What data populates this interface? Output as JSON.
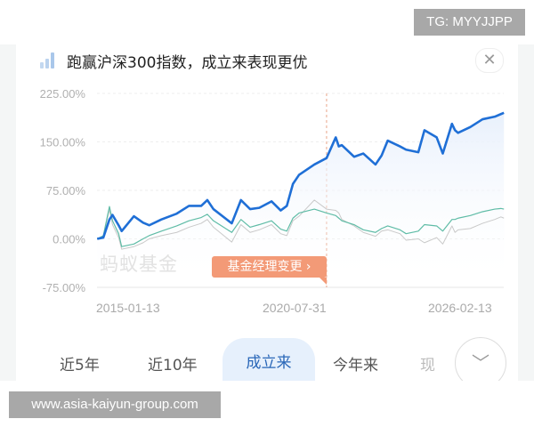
{
  "watermark_top": "TG: MYYJJPP",
  "header": {
    "title": "跑赢沪深300指数，成立来表现更优",
    "icon": "bar-chart-icon",
    "close_icon": "close-icon",
    "close_glyph": "✕"
  },
  "chart_data": {
    "type": "line",
    "ylim": [
      -75,
      225
    ],
    "y_ticks": [
      "225.00%",
      "150.00%",
      "75.00%",
      "0.00%",
      "-75.00%"
    ],
    "y_tick_values": [
      225,
      150,
      75,
      0,
      -75
    ],
    "x_ticks": [
      "2015-01-13",
      "2020-07-31",
      "2026-02-13"
    ],
    "x_range": [
      "2015-01-13",
      "2026-02-13"
    ],
    "grid": true,
    "colors": {
      "fund": "#1f6fd6",
      "benchmark": "#5fbca6",
      "index": "#c9c9c9",
      "area": "#e8f0fc"
    },
    "event": {
      "date": "2021-04",
      "label": "基金经理变更 ›"
    },
    "x": [
      "2015-01",
      "2015-03",
      "2015-05",
      "2015-06",
      "2015-08",
      "2015-09",
      "2016-01",
      "2016-04",
      "2016-06",
      "2016-10",
      "2017-03",
      "2017-07",
      "2017-11",
      "2018-01",
      "2018-03",
      "2018-09",
      "2018-12",
      "2019-03",
      "2019-06",
      "2019-10",
      "2020-01",
      "2020-03",
      "2020-05",
      "2020-07",
      "2020-12",
      "2021-04",
      "2021-07",
      "2021-08",
      "2021-09",
      "2022-01",
      "2022-04",
      "2022-08",
      "2022-10",
      "2022-12",
      "2023-04",
      "2023-06",
      "2023-10",
      "2023-12",
      "2024-04",
      "2024-06",
      "2024-09",
      "2024-10",
      "2024-11",
      "2025-03",
      "2025-07",
      "2025-11",
      "2026-01",
      "2026-02"
    ],
    "series": [
      {
        "key": "fund",
        "values": [
          0,
          2,
          30,
          37,
          21,
          12,
          35,
          25,
          21,
          30,
          39,
          51,
          51,
          60,
          46,
          24,
          60,
          46,
          48,
          58,
          44,
          51,
          85,
          99,
          115,
          125,
          157,
          143,
          145,
          127,
          132,
          115,
          129,
          152,
          143,
          138,
          134,
          168,
          157,
          132,
          178,
          168,
          164,
          173,
          185,
          189,
          193,
          195
        ]
      },
      {
        "key": "benchmark",
        "values": [
          0,
          5,
          50,
          28,
          8,
          -12,
          -8,
          0,
          5,
          12,
          20,
          28,
          33,
          38,
          28,
          10,
          30,
          18,
          22,
          28,
          15,
          12,
          32,
          40,
          46,
          40,
          36,
          32,
          28,
          22,
          14,
          10,
          16,
          20,
          14,
          8,
          12,
          22,
          20,
          12,
          30,
          30,
          32,
          36,
          42,
          46,
          47,
          46
        ]
      },
      {
        "key": "index",
        "values": [
          0,
          4,
          45,
          22,
          2,
          -16,
          -12,
          -6,
          0,
          5,
          10,
          18,
          24,
          30,
          18,
          -5,
          22,
          10,
          14,
          22,
          8,
          5,
          28,
          35,
          60,
          46,
          44,
          40,
          30,
          20,
          10,
          4,
          12,
          14,
          8,
          -2,
          0,
          -6,
          2,
          -8,
          20,
          10,
          14,
          16,
          24,
          30,
          34,
          32
        ]
      }
    ]
  },
  "chart_watermark": "蚂蚁基金",
  "tabs": [
    {
      "label": "近5年"
    },
    {
      "label": "近10年"
    },
    {
      "label": "成立来",
      "selected": true
    },
    {
      "label": "今年来"
    },
    {
      "label": "现"
    }
  ],
  "more_glyph": "﹀",
  "watermark_bottom": "www.asia-kaiyun-group.com"
}
